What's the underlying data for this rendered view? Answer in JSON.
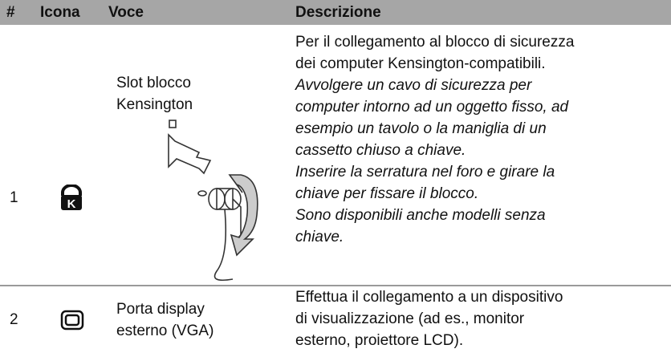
{
  "table": {
    "header": [
      "#",
      "Icona",
      "Voce",
      "Descrizione"
    ],
    "rows": [
      {
        "number": "1",
        "item": [
          "Slot blocco",
          "Kensington"
        ],
        "description": [
          "Per il collegamento al blocco di sicurezza",
          "dei computer Kensington-compatibili."
        ],
        "notes": [
          "Avvolgere un cavo di sicurezza per",
          "computer intorno ad un oggetto fisso, ad",
          "esempio un tavolo o la maniglia di un",
          "cassetto chiuso a chiave.",
          "Inserire la serratura nel foro e girare la",
          "chiave per fissare il blocco.",
          "Sono disponibili anche modelli senza",
          "chiave."
        ]
      },
      {
        "number": "2",
        "item": [
          "Porta display",
          "esterno (VGA)"
        ],
        "description": [
          "Effettua il collegamento a un dispositivo",
          "di visualizzazione (ad es., monitor",
          "esterno, proiettore LCD)."
        ]
      }
    ]
  }
}
